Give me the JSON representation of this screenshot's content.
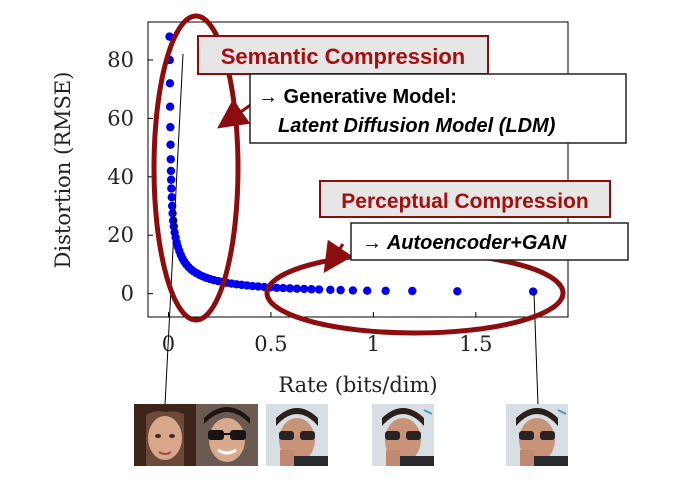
{
  "chart_data": {
    "type": "scatter",
    "title": "",
    "xlabel": "Rate (bits/dim)",
    "ylabel": "Distortion (RMSE)",
    "xlim": [
      -0.1,
      1.95
    ],
    "ylim": [
      -8,
      93
    ],
    "xticks": [
      0,
      0.5,
      1,
      1.5
    ],
    "xtick_labels": [
      "0",
      "0.5",
      "1",
      "1.5"
    ],
    "yticks": [
      0,
      20,
      40,
      60,
      80
    ],
    "ytick_labels": [
      "0",
      "20",
      "40",
      "60",
      "80"
    ],
    "grid": false,
    "legend": "none",
    "series": [
      {
        "color": "#0000ee",
        "x": [
          0.005,
          0.006,
          0.007,
          0.008,
          0.009,
          0.01,
          0.011,
          0.012,
          0.013,
          0.014,
          0.016,
          0.018,
          0.02,
          0.023,
          0.026,
          0.03,
          0.035,
          0.04,
          0.046,
          0.053,
          0.06,
          0.068,
          0.077,
          0.087,
          0.098,
          0.11,
          0.123,
          0.137,
          0.152,
          0.168,
          0.185,
          0.203,
          0.222,
          0.242,
          0.263,
          0.285,
          0.308,
          0.332,
          0.357,
          0.383,
          0.41,
          0.438,
          0.467,
          0.497,
          0.528,
          0.56,
          0.593,
          0.627,
          0.662,
          0.698,
          0.735,
          0.79,
          0.84,
          0.9,
          0.97,
          1.06,
          1.19,
          1.41,
          1.78
        ],
        "y": [
          88,
          80,
          72,
          64,
          57,
          51,
          46,
          42,
          39,
          36,
          33,
          30,
          27.5,
          25,
          23,
          21,
          19.2,
          17.5,
          16,
          14.6,
          13.3,
          12.1,
          11.0,
          10.0,
          9.1,
          8.3,
          7.6,
          7.0,
          6.4,
          5.9,
          5.4,
          5.0,
          4.6,
          4.3,
          4.0,
          3.7,
          3.45,
          3.2,
          3.0,
          2.8,
          2.6,
          2.45,
          2.3,
          2.15,
          2.0,
          1.9,
          1.8,
          1.7,
          1.6,
          1.5,
          1.4,
          1.3,
          1.2,
          1.1,
          1.0,
          0.95,
          0.9,
          0.8,
          0.7
        ]
      }
    ]
  },
  "annotations": {
    "semantic_label": "Semantic Compression",
    "generative_line1": "→ Generative Model:",
    "generative_line2": "Latent Diffusion Model (LDM)",
    "perceptual_label": "Perceptual Compression",
    "autoencoder_text": "→ Autoencoder+GAN",
    "accent_color": "#8b0d0d"
  },
  "thumbnails": [
    {
      "icon": "woman-face-thumbnail"
    },
    {
      "icon": "man-sunglasses-sharp-thumbnail"
    },
    {
      "icon": "man-sunglasses-blurry-thumbnail"
    },
    {
      "icon": "man-sunglasses-blurry-thumbnail"
    },
    {
      "icon": "man-sunglasses-blurry-thumbnail"
    }
  ]
}
